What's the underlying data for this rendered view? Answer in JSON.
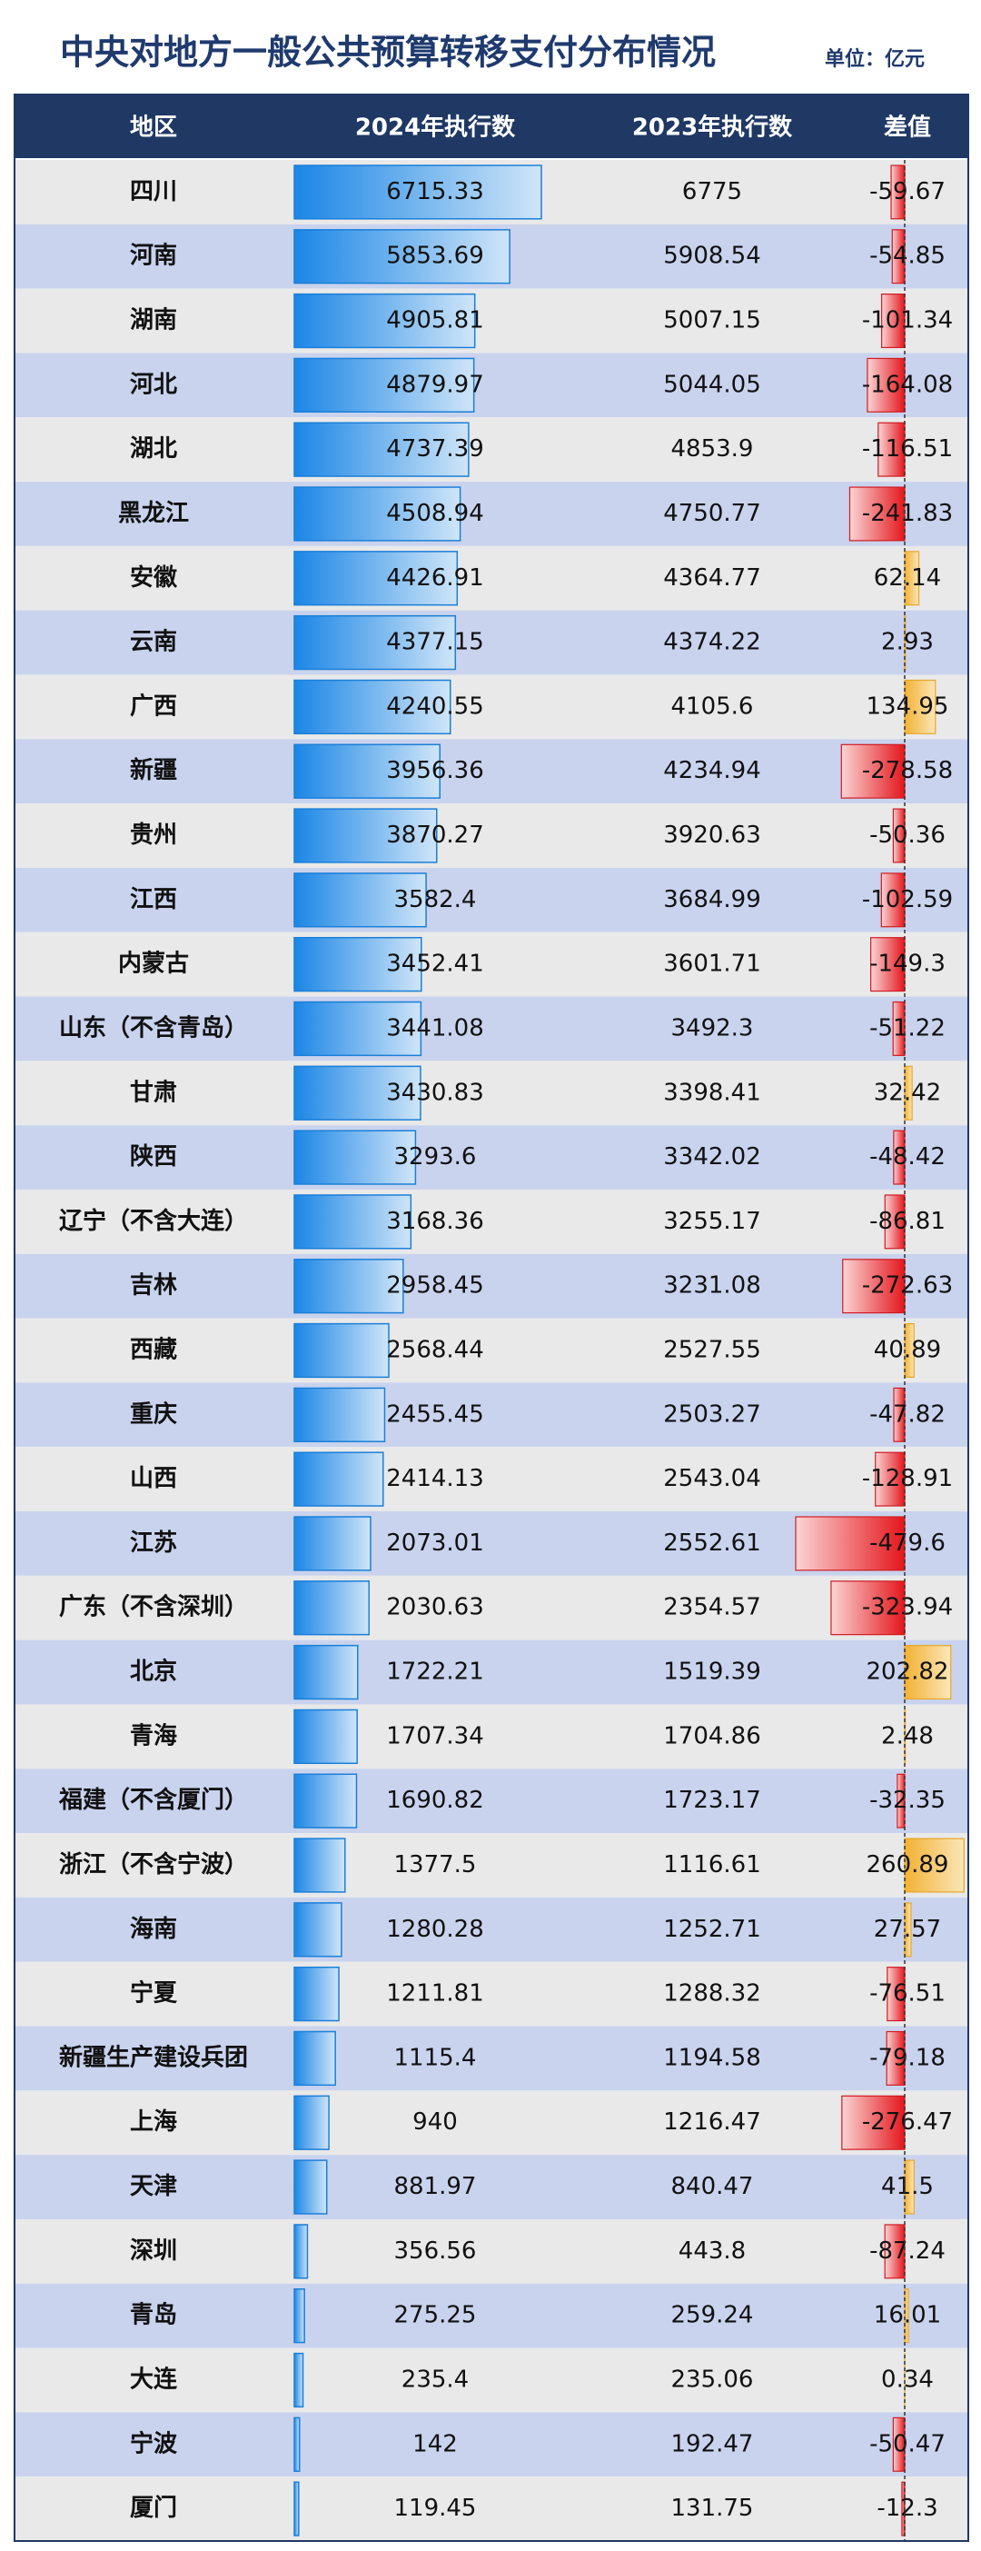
{
  "header": {
    "title": "中央对地方一般公共预算转移支付分布情况",
    "unit": "单位：亿元"
  },
  "table": {
    "columns": [
      "地区",
      "2024年执行数",
      "2023年执行数",
      "差值"
    ],
    "rows": [
      [
        "四川",
        6715.33,
        6775,
        -59.67
      ],
      [
        "河南",
        5853.69,
        5908.54,
        -54.85
      ],
      [
        "湖南",
        4905.81,
        5007.15,
        -101.34
      ],
      [
        "河北",
        4879.97,
        5044.05,
        -164.08
      ],
      [
        "湖北",
        4737.39,
        4853.9,
        -116.51
      ],
      [
        "黑龙江",
        4508.94,
        4750.77,
        -241.83
      ],
      [
        "安徽",
        4426.91,
        4364.77,
        62.14
      ],
      [
        "云南",
        4377.15,
        4374.22,
        2.93
      ],
      [
        "广西",
        4240.55,
        4105.6,
        134.95
      ],
      [
        "新疆",
        3956.36,
        4234.94,
        -278.58
      ],
      [
        "贵州",
        3870.27,
        3920.63,
        -50.36
      ],
      [
        "江西",
        3582.4,
        3684.99,
        -102.59
      ],
      [
        "内蒙古",
        3452.41,
        3601.71,
        -149.3
      ],
      [
        "山东（不含青岛）",
        3441.08,
        3492.3,
        -51.22
      ],
      [
        "甘肃",
        3430.83,
        3398.41,
        32.42
      ],
      [
        "陕西",
        3293.6,
        3342.02,
        -48.42
      ],
      [
        "辽宁（不含大连）",
        3168.36,
        3255.17,
        -86.81
      ],
      [
        "吉林",
        2958.45,
        3231.08,
        -272.63
      ],
      [
        "西藏",
        2568.44,
        2527.55,
        40.89
      ],
      [
        "重庆",
        2455.45,
        2503.27,
        -47.82
      ],
      [
        "山西",
        2414.13,
        2543.04,
        -128.91
      ],
      [
        "江苏",
        2073.01,
        2552.61,
        -479.6
      ],
      [
        "广东（不含深圳）",
        2030.63,
        2354.57,
        -323.94
      ],
      [
        "北京",
        1722.21,
        1519.39,
        202.82
      ],
      [
        "青海",
        1707.34,
        1704.86,
        2.48
      ],
      [
        "福建（不含厦门）",
        1690.82,
        1723.17,
        -32.35
      ],
      [
        "浙江（不含宁波）",
        1377.5,
        1116.61,
        260.89
      ],
      [
        "海南",
        1280.28,
        1252.71,
        27.57
      ],
      [
        "宁夏",
        1211.81,
        1288.32,
        -76.51
      ],
      [
        "新疆生产建设兵团",
        1115.4,
        1194.58,
        -79.18
      ],
      [
        "上海",
        940,
        1216.47,
        -276.47
      ],
      [
        "天津",
        881.97,
        840.47,
        41.5
      ],
      [
        "深圳",
        356.56,
        443.8,
        -87.24
      ],
      [
        "青岛",
        275.25,
        259.24,
        16.01
      ],
      [
        "大连",
        235.4,
        235.06,
        0.34
      ],
      [
        "宁波",
        142,
        192.47,
        -50.47
      ],
      [
        "厦门",
        119.45,
        131.75,
        -12.3
      ]
    ]
  }
}
